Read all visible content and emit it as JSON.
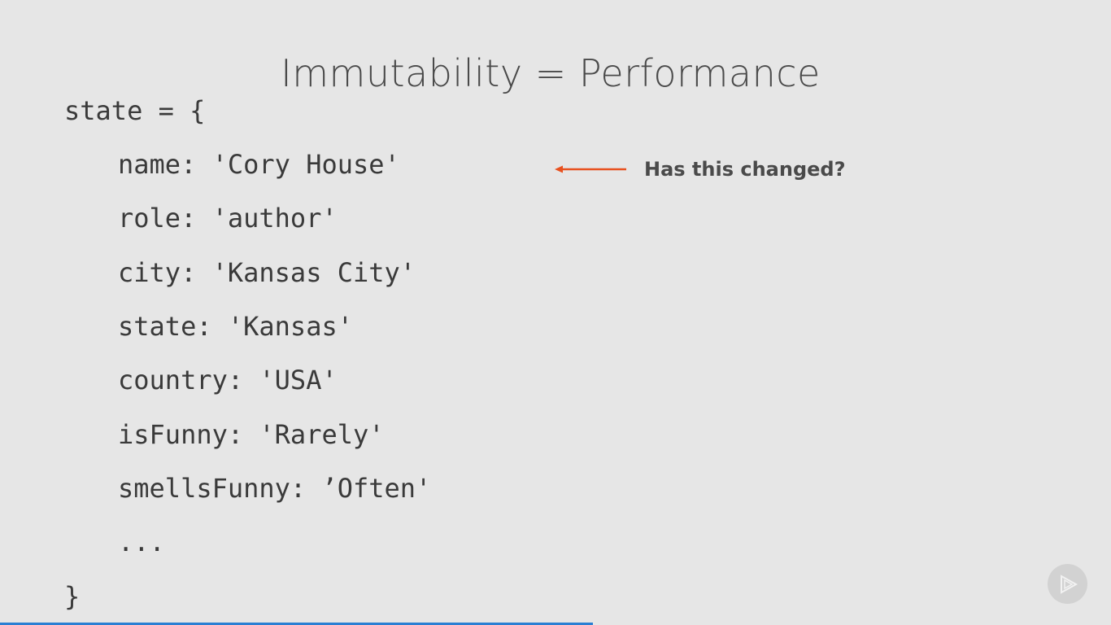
{
  "slide": {
    "title": "Immutability = Performance",
    "code_lines": [
      "state = {",
      "name: 'Cory House'",
      "role: 'author'",
      "city: 'Kansas City'",
      "state: 'Kansas'",
      "country: 'USA'",
      "isFunny: 'Rarely'",
      "smellsFunny: ’Often'",
      "...",
      "}"
    ],
    "annotation": {
      "text": "Has this changed?",
      "arrow_color": "#e8511f"
    }
  },
  "player": {
    "logo_icon": "play-logo-icon",
    "progress": 0.534,
    "progress_color": "#2a7fd3"
  }
}
